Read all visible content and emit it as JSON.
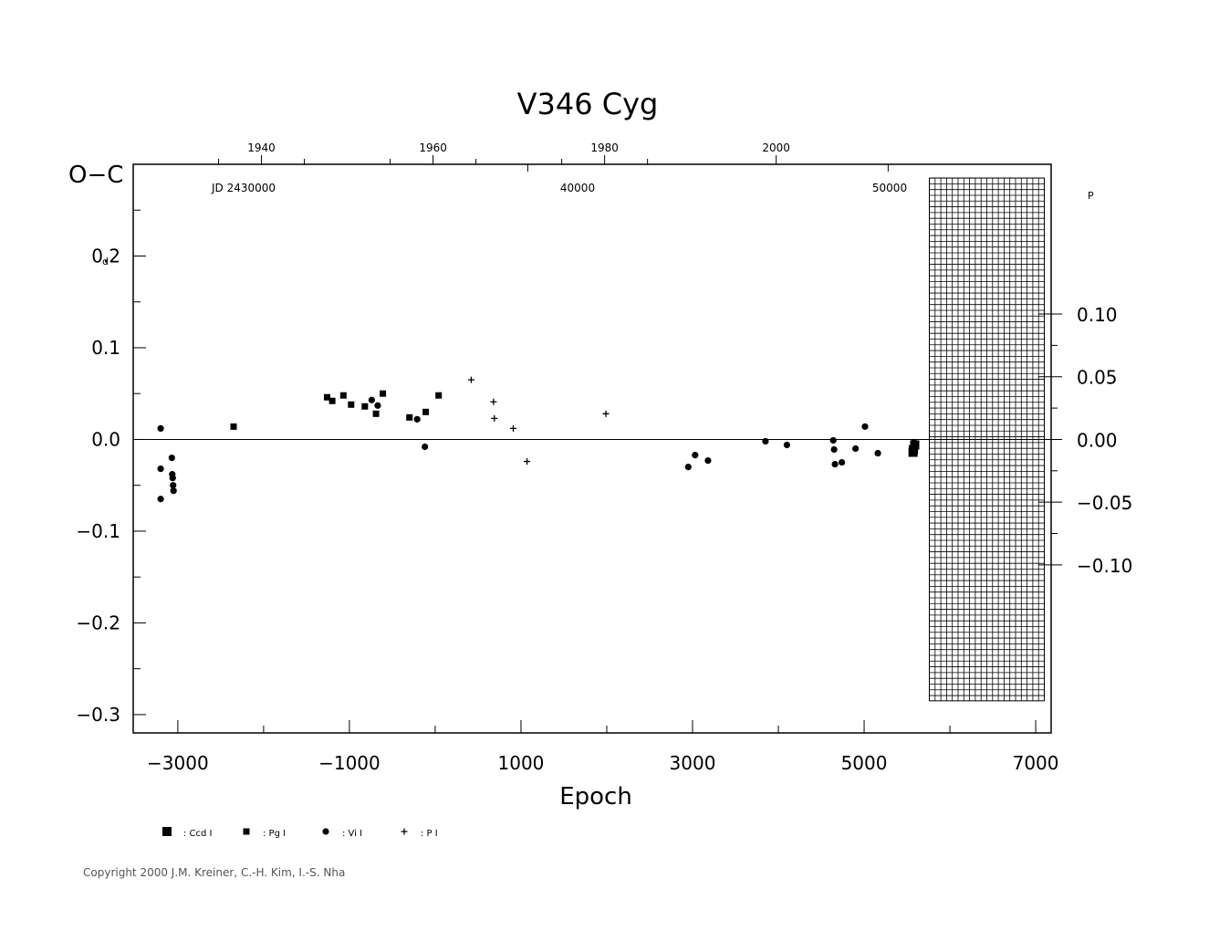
{
  "chart_data": {
    "type": "scatter",
    "title": "V346  Cyg",
    "xlabel": "Epoch",
    "ylabel": "O−C",
    "xlim": [
      -3520,
      7180
    ],
    "ylim": [
      -0.32,
      0.3
    ],
    "x_ticks": [
      -3000,
      -1000,
      1000,
      3000,
      5000,
      7000
    ],
    "x_tick_labels": [
      "−3000",
      "−1000",
      "1000",
      "3000",
      "5000",
      "7000"
    ],
    "y_ticks": [
      0.2,
      0.1,
      0.0,
      -0.1,
      -0.2,
      -0.3
    ],
    "y_tick_labels": [
      "0.2",
      "0.1",
      "0.0",
      "−0.1",
      "−0.2",
      "−0.3"
    ],
    "y_unit_superscript": "d",
    "right_axis": {
      "unit_superscript": "P",
      "ticks": [
        0.1,
        0.05,
        0.0,
        -0.05,
        -0.1
      ],
      "tick_labels": [
        "0.10",
        "0.05",
        "0.00",
        "−0.05",
        "−0.10"
      ]
    },
    "top_axis_years": {
      "labels": [
        "1940",
        "1960",
        "1980",
        "2000"
      ],
      "epochs": [
        -2025,
        -25,
        1975,
        3975
      ]
    },
    "top_axis_jd": {
      "labels": [
        "JD  2430000",
        "40000",
        "50000"
      ],
      "epochs": [
        -3520,
        1079,
        5280
      ]
    },
    "zero_line": true,
    "hatched_region": {
      "x_from": 5760,
      "x_to": 7100,
      "y_from": 0.285,
      "y_to": -0.285
    },
    "series": [
      {
        "name": ": Ccd  I",
        "marker": "square-large",
        "points": [
          [
            5570,
            -0.014
          ],
          [
            5590,
            -0.006
          ],
          [
            5575,
            -0.011
          ]
        ]
      },
      {
        "name": ": Pg  I",
        "marker": "square",
        "points": [
          [
            -2350,
            0.014
          ],
          [
            -1260,
            0.046
          ],
          [
            -1200,
            0.042
          ],
          [
            -1070,
            0.048
          ],
          [
            -980,
            0.038
          ],
          [
            -820,
            0.036
          ],
          [
            -690,
            0.028
          ],
          [
            -610,
            0.05
          ],
          [
            -300,
            0.024
          ],
          [
            -110,
            0.03
          ],
          [
            40,
            0.048
          ]
        ]
      },
      {
        "name": ": Vi  I",
        "marker": "dot",
        "points": [
          [
            -3200,
            0.012
          ],
          [
            -3200,
            -0.032
          ],
          [
            -3200,
            -0.065
          ],
          [
            -3070,
            -0.02
          ],
          [
            -3065,
            -0.038
          ],
          [
            -3060,
            -0.042
          ],
          [
            -3055,
            -0.05
          ],
          [
            -3050,
            -0.056
          ],
          [
            -740,
            0.043
          ],
          [
            -670,
            0.037
          ],
          [
            -210,
            0.022
          ],
          [
            -120,
            -0.008
          ],
          [
            2950,
            -0.03
          ],
          [
            3030,
            -0.017
          ],
          [
            3180,
            -0.023
          ],
          [
            3850,
            -0.002
          ],
          [
            4100,
            -0.006
          ],
          [
            4640,
            -0.001
          ],
          [
            4650,
            -0.011
          ],
          [
            4660,
            -0.027
          ],
          [
            4740,
            -0.025
          ],
          [
            4900,
            -0.01
          ],
          [
            5010,
            0.014
          ],
          [
            5160,
            -0.015
          ],
          [
            5580,
            -0.003
          ]
        ]
      },
      {
        "name": ": P  I",
        "marker": "plus",
        "points": [
          [
            420,
            0.065
          ],
          [
            680,
            0.041
          ],
          [
            690,
            0.023
          ],
          [
            910,
            0.012
          ],
          [
            1070,
            -0.024
          ],
          [
            1990,
            0.028
          ]
        ]
      }
    ]
  },
  "copyright": "Copyright 2000 J.M. Kreiner, C.-H. Kim, I.-S. Nha"
}
